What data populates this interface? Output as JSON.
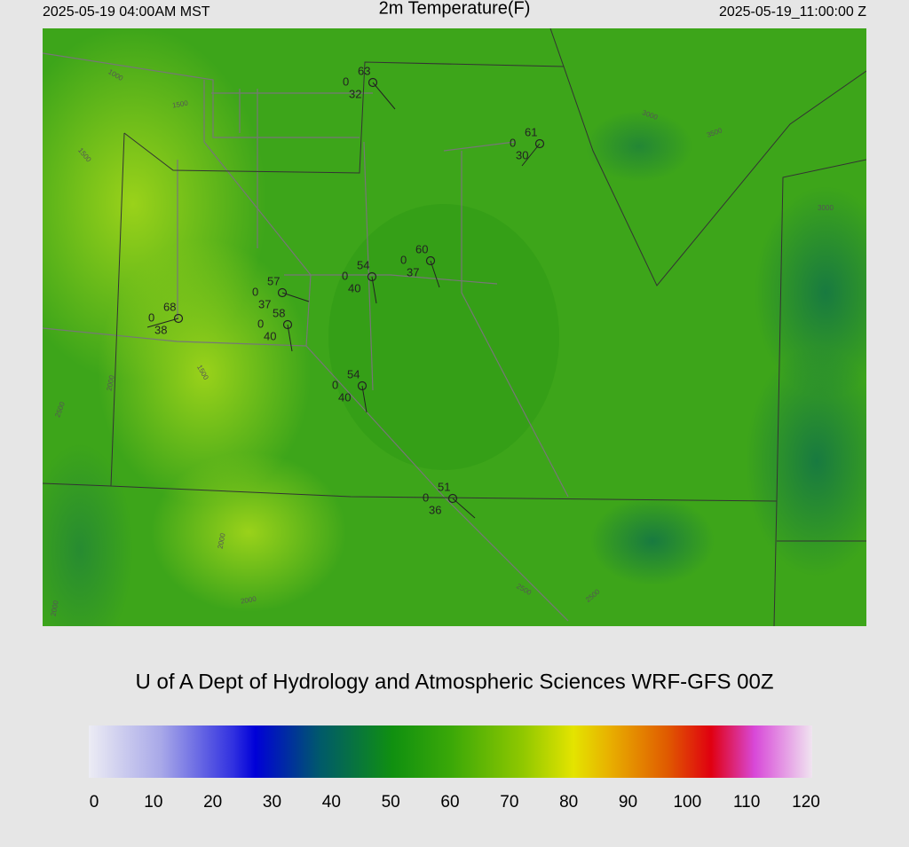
{
  "header": {
    "local_time": "2025-05-19 04:00AM MST",
    "title": "2m Temperature(F)",
    "valid_time": "2025-05-19_11:00:00 Z"
  },
  "stations": [
    {
      "temperature": "63",
      "cloud": "0",
      "dewpoint": "32"
    },
    {
      "temperature": "61",
      "cloud": "0",
      "dewpoint": "30"
    },
    {
      "temperature": "60",
      "cloud": "0",
      "dewpoint": "37"
    },
    {
      "temperature": "54",
      "cloud": "0",
      "dewpoint": "40"
    },
    {
      "temperature": "57",
      "cloud": "0",
      "dewpoint": "37"
    },
    {
      "temperature": "58",
      "cloud": "0",
      "dewpoint": "40"
    },
    {
      "temperature": "68",
      "cloud": "0",
      "dewpoint": "38"
    },
    {
      "temperature": "54",
      "cloud": "0",
      "dewpoint": "40"
    },
    {
      "temperature": "51",
      "cloud": "0",
      "dewpoint": "36"
    }
  ],
  "contour_labels": [
    "1000",
    "1500",
    "1500",
    "1500",
    "2000",
    "2500",
    "2000",
    "2000",
    "2500",
    "3000",
    "3500",
    "3000",
    "2500",
    "2000"
  ],
  "footer": "U of A Dept of Hydrology and Atmospheric Sciences WRF-GFS 00Z",
  "colorbar": {
    "ticks": [
      "0",
      "10",
      "20",
      "30",
      "40",
      "50",
      "60",
      "70",
      "80",
      "90",
      "100",
      "110",
      "120"
    ]
  }
}
